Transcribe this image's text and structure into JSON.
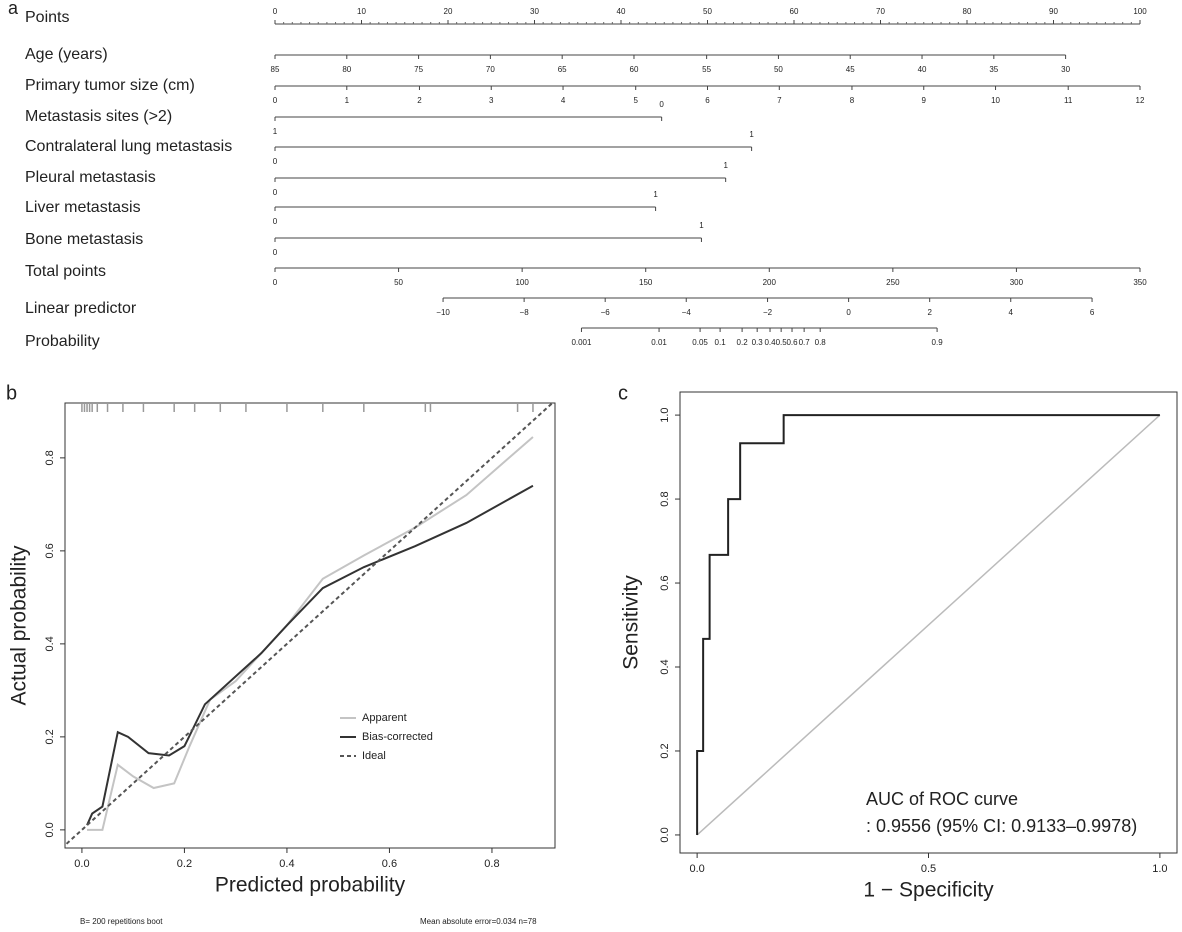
{
  "chart_data": [
    {
      "type": "nomogram",
      "panel": "a",
      "points_lim": [
        0,
        100
      ],
      "total_lim": [
        0,
        350
      ],
      "scales": [
        {
          "name": "Points",
          "ticks": [
            0,
            10,
            20,
            30,
            40,
            50,
            60,
            70,
            80,
            90,
            100
          ]
        },
        {
          "name": "Age (years)",
          "ticks": [
            85,
            80,
            75,
            70,
            65,
            60,
            55,
            50,
            45,
            40,
            35,
            30
          ],
          "points": [
            0,
            8.3,
            16.6,
            24.9,
            33.2,
            41.5,
            49.9,
            58.2,
            66.5,
            74.8,
            83.1,
            91.4
          ]
        },
        {
          "name": "Primary tumor size (cm)",
          "ticks": [
            0,
            1,
            2,
            3,
            4,
            5,
            6,
            7,
            8,
            9,
            10,
            11,
            12
          ],
          "points": [
            0,
            8.3,
            16.7,
            25,
            33.3,
            41.7,
            50,
            58.3,
            66.7,
            75,
            83.3,
            91.7,
            100
          ]
        },
        {
          "name": "Metastasis sites (>2)",
          "ticks": [
            1,
            0
          ],
          "points": [
            0,
            44.7
          ]
        },
        {
          "name": "Contralateral lung metastasis",
          "ticks": [
            0,
            1
          ],
          "points": [
            0,
            55.1
          ]
        },
        {
          "name": "Pleural metastasis",
          "ticks": [
            0,
            1
          ],
          "points": [
            0,
            52.1
          ]
        },
        {
          "name": "Liver metastasis",
          "ticks": [
            0,
            1
          ],
          "points": [
            0,
            44.0
          ]
        },
        {
          "name": "Bone metastasis",
          "ticks": [
            0,
            1
          ],
          "points": [
            0,
            49.3
          ]
        },
        {
          "name": "Total points",
          "axis": "total",
          "ticks": [
            0,
            50,
            100,
            150,
            200,
            250,
            300,
            350
          ]
        },
        {
          "name": "Linear predictor",
          "axis": "total",
          "ticks": [
            {
              "value": -10,
              "label": "−10"
            },
            {
              "value": -8,
              "label": "−8"
            },
            {
              "value": -6,
              "label": "−6"
            },
            {
              "value": -4,
              "label": "−4"
            },
            {
              "value": -2,
              "label": "−2"
            },
            0,
            2,
            4,
            6
          ],
          "points": [
            68,
            100.8,
            133.6,
            166.4,
            199.3,
            232.1,
            264.9,
            297.7,
            330.6
          ]
        },
        {
          "name": "Probability",
          "axis": "total",
          "ticks": [
            0.001,
            0.01,
            0.05,
            0.1,
            0.2,
            0.3,
            0.4,
            0.5,
            0.6,
            0.7,
            0.8,
            0.9
          ],
          "points": [
            124,
            155.4,
            172,
            180.1,
            189,
            195.1,
            200.3,
            204.8,
            209.2,
            214.1,
            220.6,
            267.9
          ]
        }
      ]
    },
    {
      "type": "line",
      "panel": "b",
      "x_label": "Predicted probability",
      "y_label": "Actual probability",
      "xlim": [
        -0.033,
        0.923
      ],
      "ylim": [
        -0.039,
        0.918
      ],
      "xticks": [
        {
          "value": 0,
          "label": "0.0"
        },
        0.2,
        0.4,
        0.6,
        0.8
      ],
      "yticks": [
        {
          "value": 0,
          "label": "0.0"
        },
        0.2,
        0.4,
        0.6,
        0.8
      ],
      "rug": [
        0.0,
        0.005,
        0.01,
        0.015,
        0.02,
        0.03,
        0.05,
        0.08,
        0.12,
        0.18,
        0.22,
        0.27,
        0.32,
        0.4,
        0.47,
        0.55,
        0.67,
        0.68,
        0.85,
        0.88
      ],
      "series": [
        {
          "name": "Apparent",
          "color": "#c4c4c4",
          "x": [
            0.01,
            0.04,
            0.07,
            0.1,
            0.14,
            0.18,
            0.21,
            0.25,
            0.3,
            0.4,
            0.47,
            0.55,
            0.65,
            0.75,
            0.88
          ],
          "values": [
            0,
            0,
            0.14,
            0.115,
            0.09,
            0.1,
            0.18,
            0.28,
            0.32,
            0.44,
            0.54,
            0.59,
            0.65,
            0.72,
            0.845
          ]
        },
        {
          "name": "Bias-corrected",
          "color": "#333333",
          "x": [
            0.01,
            0.02,
            0.04,
            0.07,
            0.09,
            0.13,
            0.17,
            0.2,
            0.24,
            0.3,
            0.35,
            0.4,
            0.47,
            0.55,
            0.65,
            0.75,
            0.88
          ],
          "values": [
            0.01,
            0.035,
            0.05,
            0.21,
            0.2,
            0.165,
            0.16,
            0.18,
            0.27,
            0.33,
            0.38,
            0.44,
            0.52,
            0.565,
            0.61,
            0.66,
            0.74
          ]
        },
        {
          "name": "Ideal",
          "color": "#555555",
          "dashed": true,
          "x": [
            -0.03,
            0.92
          ],
          "values": [
            -0.03,
            0.92
          ]
        }
      ],
      "footnotes": [
        "B= 200 repetitions boot",
        "Mean absolute error=0.034 n=78"
      ]
    },
    {
      "type": "line",
      "panel": "c",
      "x_label": "1 − Specificity",
      "y_label": "Sensitivity",
      "xlim": [
        -0.037,
        1.037
      ],
      "ylim": [
        -0.043,
        1.055
      ],
      "xticks": [
        {
          "value": 0,
          "label": "0.0"
        },
        0.5,
        {
          "value": 1,
          "label": "1.0"
        }
      ],
      "yticks": [
        {
          "value": 0,
          "label": "0.0"
        },
        0.2,
        0.4,
        0.6,
        0.8,
        {
          "value": 1,
          "label": "1.0"
        }
      ],
      "diagonal": true,
      "series": [
        {
          "color": "#222222",
          "x": [
            0,
            0,
            0.013,
            0.013,
            0.027,
            0.027,
            0.067,
            0.067,
            0.093,
            0.093,
            0.187,
            0.187,
            1
          ],
          "values": [
            0,
            0.2,
            0.2,
            0.467,
            0.467,
            0.667,
            0.667,
            0.8,
            0.8,
            0.933,
            0.933,
            1,
            1
          ]
        }
      ],
      "annotations": [
        "AUC of ROC curve",
        ": 0.9556 (95% CI: 0.9133–0.9978)"
      ]
    }
  ]
}
